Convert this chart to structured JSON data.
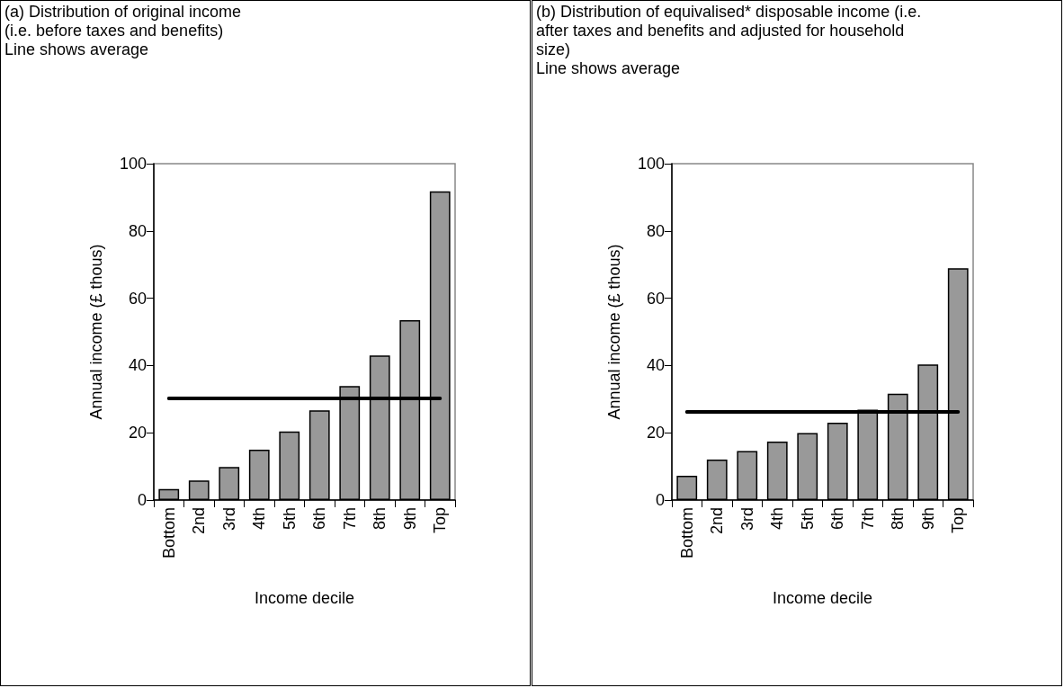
{
  "chart_data": [
    {
      "type": "bar",
      "title": "(a) Distribution of original income",
      "subtitle": "(i.e. before taxes and benefits)",
      "annotations": [
        "Line shows average"
      ],
      "xlabel": "Income decile",
      "ylabel": "Annual income (£ thous)",
      "categories": [
        "Bottom",
        "2nd",
        "3rd",
        "4th",
        "5th",
        "6th",
        "7th",
        "8th",
        "9th",
        "Top"
      ],
      "values": [
        3.3,
        5.8,
        9.8,
        15.0,
        20.4,
        26.7,
        33.9,
        43.0,
        53.5,
        91.8
      ],
      "color": "#999999",
      "ylim": [
        0,
        100
      ],
      "yticks": [
        0,
        20,
        40,
        60,
        80,
        100
      ],
      "grid": false,
      "ref_lines": [
        {
          "axis": "y",
          "value": 30.3,
          "color": "#000000"
        }
      ]
    },
    {
      "type": "bar",
      "title": "(b) Distribution of equivalised* disposable income (i.e. after taxes and benefits and adjusted for household size)",
      "annotations": [
        "Line shows average"
      ],
      "xlabel": "Income decile",
      "ylabel": "Annual income (£ thous)",
      "categories": [
        "Bottom",
        "2nd",
        "3rd",
        "4th",
        "5th",
        "6th",
        "7th",
        "8th",
        "9th",
        "Top"
      ],
      "values": [
        7.2,
        12.0,
        14.6,
        17.4,
        19.9,
        23.0,
        26.9,
        31.6,
        40.3,
        68.9
      ],
      "color": "#999999",
      "ylim": [
        0,
        100
      ],
      "yticks": [
        0,
        20,
        40,
        60,
        80,
        100
      ],
      "grid": false,
      "ref_lines": [
        {
          "axis": "y",
          "value": 26.2,
          "color": "#000000"
        }
      ]
    }
  ]
}
